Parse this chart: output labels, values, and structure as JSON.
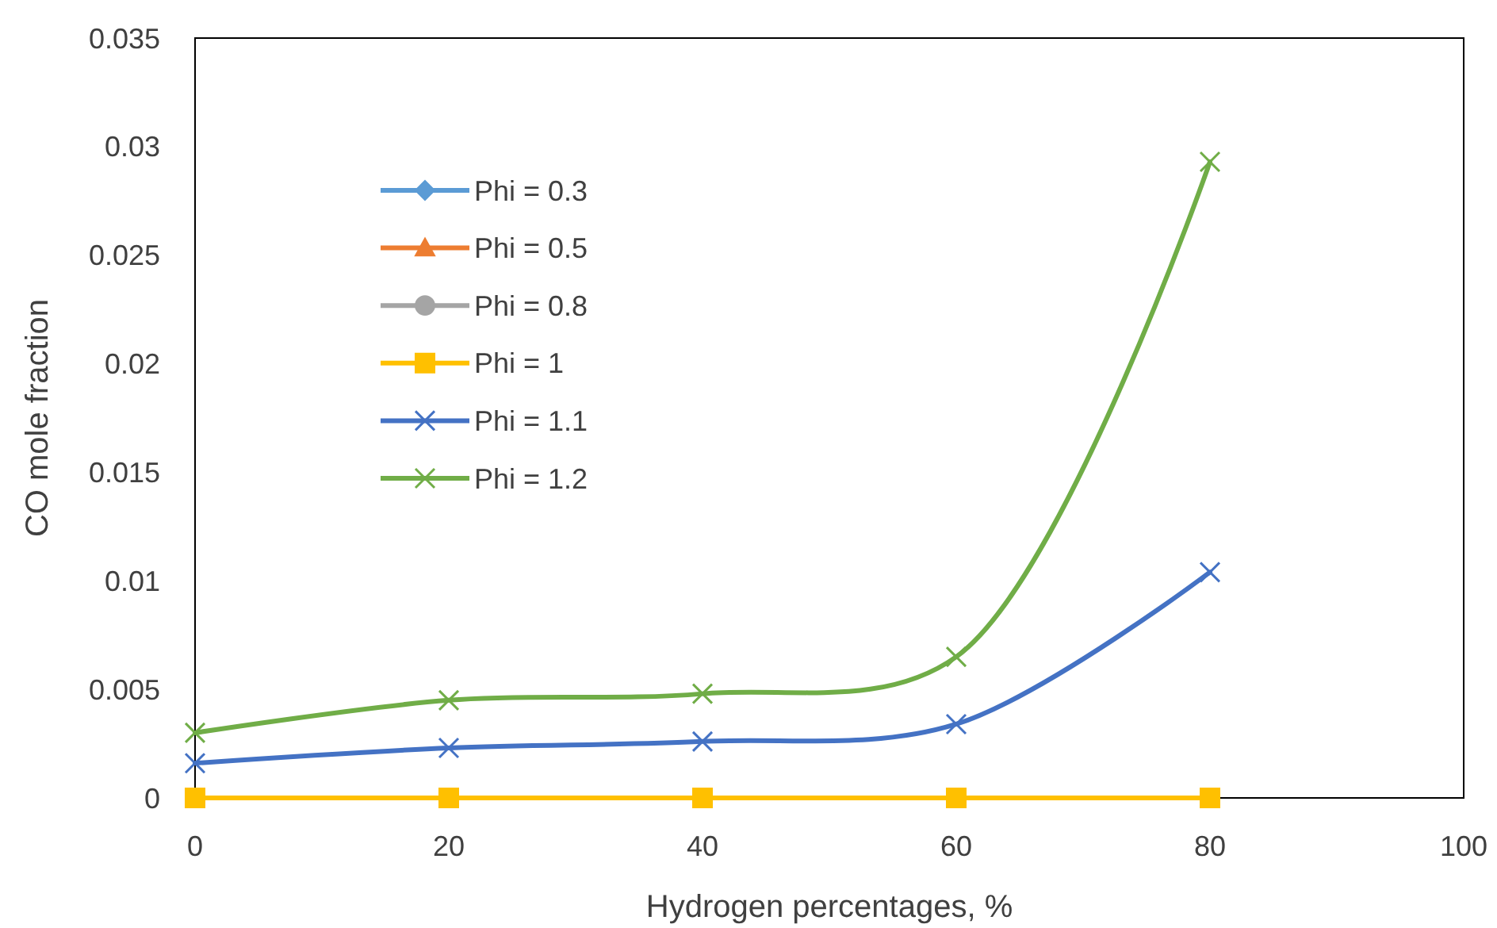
{
  "chart_data": {
    "type": "line",
    "xlabel": "Hydrogen percentages, %",
    "ylabel": "CO mole fraction",
    "x": [
      0,
      20,
      40,
      60,
      80
    ],
    "xlim": [
      0,
      100
    ],
    "xticks": [
      0,
      20,
      40,
      60,
      80,
      100
    ],
    "ylim": [
      0,
      0.035
    ],
    "yticks": [
      0,
      0.005,
      0.01,
      0.015,
      0.02,
      0.025,
      0.03,
      0.035
    ],
    "grid": false,
    "legend": "top left",
    "series": [
      {
        "name": "Phi = 0.3",
        "color": "#5b9bd5",
        "marker": "diamond",
        "values": [
          null,
          null,
          null,
          null,
          null
        ]
      },
      {
        "name": "Phi = 0.5",
        "color": "#ed7d31",
        "marker": "triangle",
        "values": [
          null,
          null,
          null,
          null,
          null
        ]
      },
      {
        "name": "Phi = 0.8",
        "color": "#a5a5a5",
        "marker": "circle",
        "values": [
          null,
          null,
          null,
          null,
          null
        ]
      },
      {
        "name": "Phi = 1",
        "color": "#ffc000",
        "marker": "square",
        "values": [
          0,
          0,
          0,
          0,
          0
        ]
      },
      {
        "name": "Phi = 1.1",
        "color": "#4472c4",
        "marker": "cross",
        "values": [
          0.0016,
          0.0023,
          0.0026,
          0.0034,
          0.0104
        ]
      },
      {
        "name": "Phi = 1.2",
        "color": "#70ad47",
        "marker": "cross",
        "values": [
          0.003,
          0.0045,
          0.0048,
          0.0065,
          0.0293
        ]
      }
    ]
  }
}
